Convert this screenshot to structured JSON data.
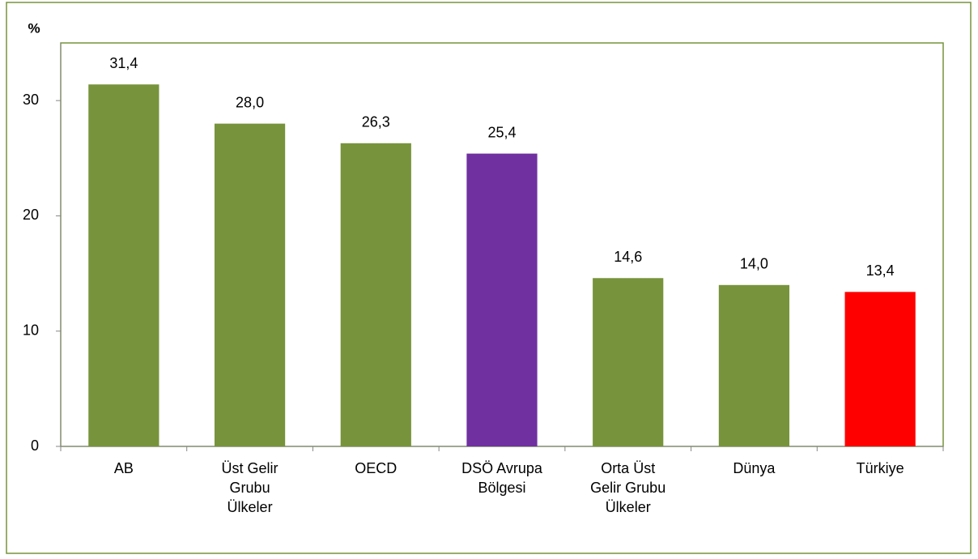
{
  "chart_data": {
    "type": "bar",
    "y_label": "%",
    "categories": [
      "AB",
      "Üst Gelir Grubu Ülkeler",
      "OECD",
      "DSÖ Avrupa Bölgesi",
      "Orta Üst Gelir Grubu Ülkeler",
      "Dünya",
      "Türkiye"
    ],
    "values": [
      31.4,
      28.0,
      26.3,
      25.4,
      14.6,
      14.0,
      13.4
    ],
    "value_labels": [
      "31,4",
      "28,0",
      "26,3",
      "25,4",
      "14,6",
      "14,0",
      "13,4"
    ],
    "colors": [
      "#77933c",
      "#77933c",
      "#77933c",
      "#7030a0",
      "#77933c",
      "#77933c",
      "#ff0000"
    ],
    "ylim": [
      0,
      35
    ],
    "yticks": [
      0,
      10,
      20,
      30
    ],
    "grid": false
  }
}
